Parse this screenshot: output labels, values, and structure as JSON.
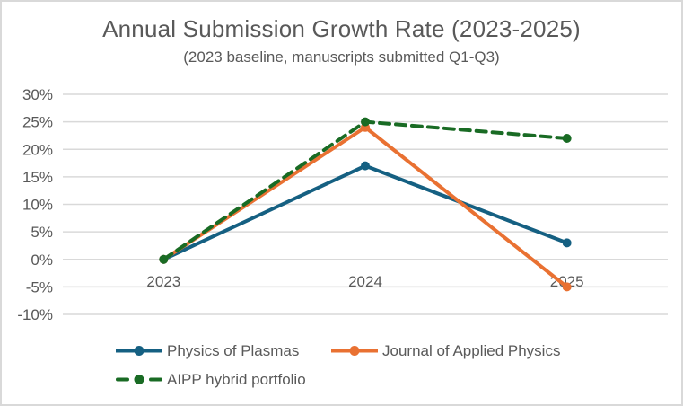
{
  "chart_data": {
    "type": "line",
    "title": "Annual Submission Growth Rate (2023-2025)",
    "subtitle": "(2023 baseline, manuscripts submitted Q1-Q3)",
    "categories": [
      "2023",
      "2024",
      "2025"
    ],
    "series": [
      {
        "name": "Physics of Plasmas",
        "values": [
          0,
          17,
          3
        ],
        "color": "#156082",
        "dash": false,
        "marker": "circle"
      },
      {
        "name": "Journal of Applied Physics",
        "values": [
          0,
          24,
          -5
        ],
        "color": "#E97132",
        "dash": false,
        "marker": "circle"
      },
      {
        "name": "AIPP hybrid portfolio",
        "values": [
          0,
          25,
          22
        ],
        "color": "#196B24",
        "dash": true,
        "marker": "circle"
      }
    ],
    "y_axis": {
      "min": -10,
      "max": 30,
      "step": 5,
      "unit": "%",
      "ticks": [
        {
          "label": "30%",
          "value": 30
        },
        {
          "label": "25%",
          "value": 25
        },
        {
          "label": "20%",
          "value": 20
        },
        {
          "label": "15%",
          "value": 15
        },
        {
          "label": "10%",
          "value": 10
        },
        {
          "label": "5%",
          "value": 5
        },
        {
          "label": "0%",
          "value": 0
        },
        {
          "label": "-5%",
          "value": -5
        },
        {
          "label": "-10%",
          "value": -10
        }
      ]
    },
    "grid": true,
    "legend_position": "bottom",
    "colors": {
      "gridline": "#D9D9D9",
      "text": "#595959",
      "frame_border": "#D9D9D9",
      "background": "#FFFFFF"
    }
  }
}
